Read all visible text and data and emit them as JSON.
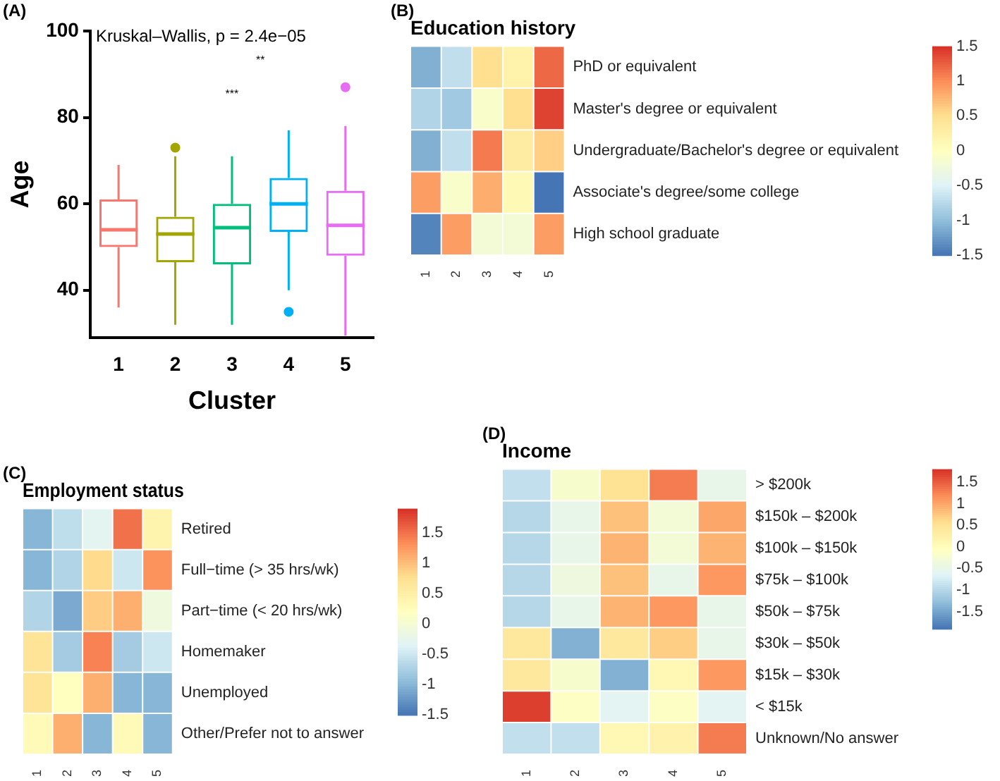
{
  "chart_data": [
    {
      "type": "box",
      "xlabel": "Cluster",
      "ylabel": "Age",
      "categories": [
        "1",
        "2",
        "3",
        "4",
        "5"
      ],
      "colors": [
        "#f8766d",
        "#a3a500",
        "#00bf7d",
        "#00b0f6",
        "#e76bf3"
      ],
      "boxes": [
        {
          "low": 36,
          "q1": 50,
          "median": 54,
          "q3": 61,
          "high": 69
        },
        {
          "low": 32,
          "q1": 46.5,
          "median": 53,
          "q3": 57,
          "high": 71,
          "outliers": [
            73
          ]
        },
        {
          "low": 32,
          "q1": 46,
          "median": 54.5,
          "q3": 60,
          "high": 71
        },
        {
          "low": 40,
          "q1": 53.5,
          "median": 60,
          "q3": 66,
          "high": 77,
          "outliers": [
            35
          ]
        },
        {
          "low": 29.5,
          "q1": 48,
          "median": 55,
          "q3": 63,
          "high": 78,
          "outliers": [
            87
          ]
        }
      ],
      "ylim": [
        29,
        100
      ],
      "yticks": [
        40,
        60,
        80,
        100
      ],
      "grid": false,
      "annotations": [
        "(A)",
        "Kruskal–Wallis, p = 2.4e−05",
        "***",
        "**"
      ]
    },
    {
      "type": "heatmap",
      "title": "Education history",
      "categories": [
        "1",
        "2",
        "3",
        "4",
        "5"
      ],
      "y_categories": [
        "PhD or equivalent",
        "Master's degree or equivalent",
        "Undergraduate/Bachelor's degree or equivalent",
        "Associate's degree/some college",
        "High school graduate"
      ],
      "cells": [
        [
          -1.1,
          -0.7,
          0.5,
          0.2,
          1.2
        ],
        [
          -0.8,
          -0.9,
          -0.1,
          0.5,
          1.4
        ],
        [
          -1.1,
          -0.7,
          1.1,
          0.3,
          0.6
        ],
        [
          0.9,
          -0.1,
          0.8,
          0.1,
          -1.5
        ],
        [
          -1.4,
          0.9,
          -0.2,
          -0.2,
          0.9
        ]
      ],
      "clim": [
        -1.5,
        1.5
      ],
      "cticks": [
        1.5,
        1,
        0.5,
        0,
        -0.5,
        -1,
        -1.5
      ],
      "annotations": [
        "(B)"
      ]
    },
    {
      "type": "heatmap",
      "title": "Employment status",
      "categories": [
        "1",
        "2",
        "3",
        "4",
        "5"
      ],
      "y_categories": [
        "Retired",
        "Full−time (> 35 hrs/wk)",
        "Part−time (< 20 hrs/wk)",
        "Homemaker",
        "Unemployed",
        "Other/Prefer not to answer"
      ],
      "cells": [
        [
          -1.0,
          -0.6,
          -0.3,
          1.5,
          0.4
        ],
        [
          -1.0,
          -0.7,
          0.8,
          -0.5,
          1.3
        ],
        [
          -0.7,
          -1.1,
          0.9,
          1.1,
          -0.1
        ],
        [
          0.7,
          -0.8,
          1.4,
          -0.8,
          -0.5
        ],
        [
          0.7,
          0.2,
          1.1,
          -1.0,
          -1.0
        ],
        [
          0.3,
          1.1,
          -1.0,
          0.3,
          -1.0
        ]
      ],
      "clim": [
        -1.5,
        1.9
      ],
      "cticks": [
        1.5,
        1,
        0.5,
        0,
        -0.5,
        -1,
        -1.5
      ],
      "annotations": [
        "(C)"
      ]
    },
    {
      "type": "heatmap",
      "title": "Income",
      "categories": [
        "1",
        "2",
        "3",
        "4",
        "5"
      ],
      "y_categories": [
        "> $200k",
        "$150k – $200k",
        "$100k – $150k",
        "$75k – $100k",
        "$50k – $75k",
        "$30k – $50k",
        "$15k – $30k",
        "< $15k",
        "Unknown/No answer"
      ],
      "cells": [
        [
          -0.9,
          -0.2,
          0.5,
          1.3,
          -0.5
        ],
        [
          -1.0,
          -0.5,
          0.8,
          -0.3,
          1.0
        ],
        [
          -1.0,
          -0.5,
          0.9,
          -0.3,
          0.9
        ],
        [
          -1.0,
          -0.4,
          0.8,
          -0.5,
          1.1
        ],
        [
          -1.0,
          -0.5,
          0.9,
          1.1,
          -0.5
        ],
        [
          0.4,
          -1.4,
          0.4,
          0.7,
          -0.5
        ],
        [
          0.4,
          -0.2,
          -1.4,
          0.1,
          1.1
        ],
        [
          1.7,
          -0.1,
          -0.6,
          -0.1,
          -0.6
        ],
        [
          -0.9,
          -0.9,
          0.1,
          0.2,
          1.3
        ]
      ],
      "clim": [
        -1.9,
        1.8
      ],
      "cticks": [
        1.5,
        1,
        0.5,
        0,
        -0.5,
        -1,
        -1.5
      ],
      "annotations": [
        "(D)"
      ]
    }
  ]
}
